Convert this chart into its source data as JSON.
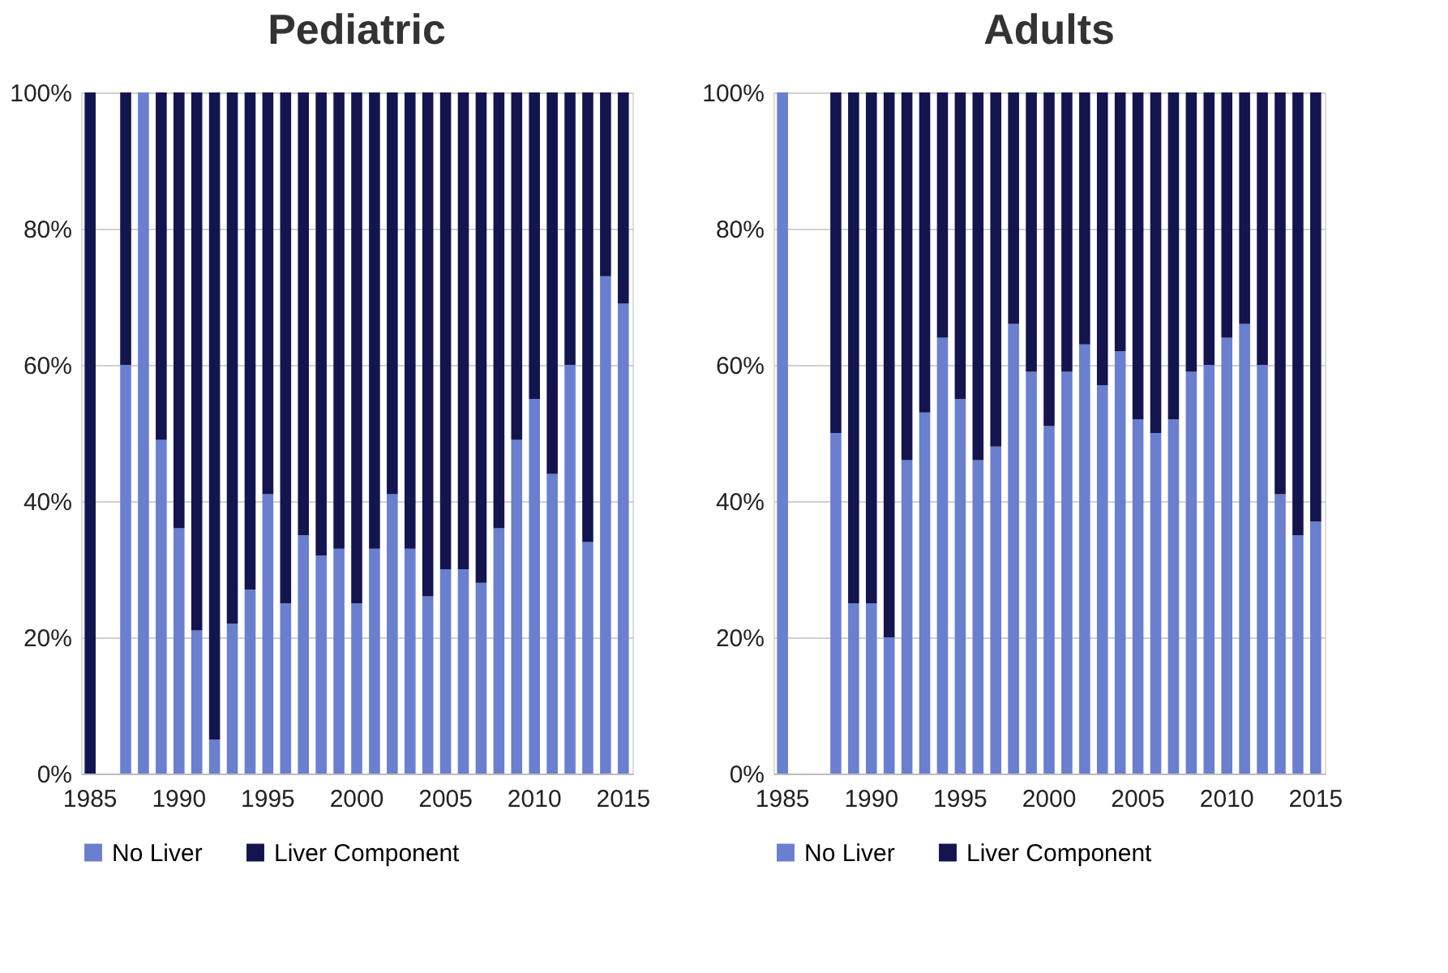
{
  "chart_data": [
    {
      "type": "bar",
      "title": "Pediatric",
      "stacked": true,
      "categories": [
        "1985",
        null,
        null,
        null,
        null,
        "1990",
        null,
        null,
        null,
        null,
        "1995",
        null,
        null,
        null,
        null,
        "2000",
        null,
        null,
        null,
        null,
        "2005",
        null,
        null,
        null,
        null,
        "2010",
        null,
        null,
        null,
        null,
        "2015"
      ],
      "series": [
        {
          "name": "No Liver",
          "color": "#6a7fcf",
          "values": [
            null,
            null,
            60,
            100,
            49,
            36,
            21,
            5,
            22,
            27,
            41,
            25,
            35,
            32,
            33,
            25,
            33,
            41,
            33,
            26,
            30,
            30,
            28,
            36,
            49,
            55,
            44,
            60,
            34,
            73,
            69
          ]
        },
        {
          "name": "Liver Component",
          "color": "#14154f",
          "values": [
            100,
            null,
            40,
            null,
            51,
            64,
            79,
            95,
            78,
            73,
            59,
            75,
            65,
            68,
            67,
            75,
            67,
            59,
            67,
            74,
            70,
            70,
            72,
            64,
            51,
            45,
            56,
            40,
            66,
            27,
            31
          ]
        }
      ],
      "ylim": [
        0,
        100
      ],
      "yticks": [
        {
          "value": 0,
          "label": "0%"
        },
        {
          "value": 20,
          "label": "20%"
        },
        {
          "value": 40,
          "label": "40%"
        },
        {
          "value": 60,
          "label": "60%"
        },
        {
          "value": 80,
          "label": "80%"
        },
        {
          "value": 100,
          "label": "100%"
        }
      ],
      "grid": "y",
      "legend": "bottom"
    },
    {
      "type": "bar",
      "title": "Adults",
      "stacked": true,
      "categories": [
        "1985",
        null,
        null,
        null,
        null,
        "1990",
        null,
        null,
        null,
        null,
        "1995",
        null,
        null,
        null,
        null,
        "2000",
        null,
        null,
        null,
        null,
        "2005",
        null,
        null,
        null,
        null,
        "2010",
        null,
        null,
        null,
        null,
        "2015"
      ],
      "series": [
        {
          "name": "No Liver",
          "color": "#6a7fcf",
          "values": [
            100,
            null,
            null,
            50,
            25,
            25,
            20,
            46,
            53,
            64,
            55,
            46,
            48,
            66,
            59,
            51,
            59,
            63,
            57,
            62,
            52,
            50,
            52,
            59,
            60,
            64,
            66,
            60,
            41,
            35,
            37
          ]
        },
        {
          "name": "Liver Component",
          "color": "#14154f",
          "values": [
            null,
            null,
            null,
            50,
            75,
            75,
            80,
            54,
            47,
            36,
            45,
            54,
            52,
            34,
            41,
            49,
            41,
            37,
            43,
            38,
            48,
            50,
            48,
            41,
            40,
            36,
            34,
            40,
            59,
            65,
            63
          ]
        }
      ],
      "ylim": [
        0,
        100
      ],
      "yticks": [
        {
          "value": 0,
          "label": "0%"
        },
        {
          "value": 20,
          "label": "20%"
        },
        {
          "value": 40,
          "label": "40%"
        },
        {
          "value": 60,
          "label": "60%"
        },
        {
          "value": 80,
          "label": "80%"
        },
        {
          "value": 100,
          "label": "100%"
        }
      ],
      "grid": "y",
      "legend": "bottom"
    }
  ]
}
